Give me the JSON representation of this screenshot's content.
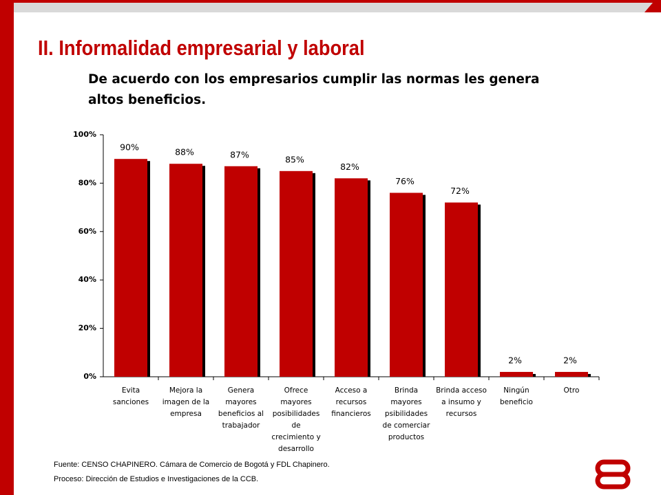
{
  "title": "II. Informalidad empresarial y laboral",
  "subtitle": "De acuerdo con los empresarios cumplir las normas les genera altos beneficios.",
  "chart_data": {
    "type": "bar",
    "categories": [
      "Evita sanciones",
      "Mejora la imagen de la empresa",
      "Genera mayores beneficios al trabajador",
      "Ofrece mayores posibilidades de crecimiento y desarrollo",
      "Acceso a recursos financieros",
      "Brinda mayores psibilidades de comerciar productos",
      "Brinda acceso a insumo y recursos",
      "Ningún beneficio",
      "Otro"
    ],
    "values": [
      90,
      88,
      87,
      85,
      82,
      76,
      72,
      2,
      2
    ],
    "value_labels": [
      "90%",
      "88%",
      "87%",
      "85%",
      "82%",
      "76%",
      "72%",
      "2%",
      "2%"
    ],
    "color": "#c00000",
    "ylim": [
      0,
      100
    ],
    "yticks": [
      {
        "value": 0,
        "label": "0%"
      },
      {
        "value": 20,
        "label": "20%"
      },
      {
        "value": 40,
        "label": "40%"
      },
      {
        "value": 60,
        "label": "60%"
      },
      {
        "value": 80,
        "label": "80%"
      },
      {
        "value": 100,
        "label": "100%"
      }
    ],
    "grid": false
  },
  "footer": [
    "Fuente: CENSO CHAPINERO. Cámara de Comercio de Bogotá y FDL Chapinero.",
    "Proceso: Dirección de Estudios e Investigaciones de la CCB."
  ]
}
